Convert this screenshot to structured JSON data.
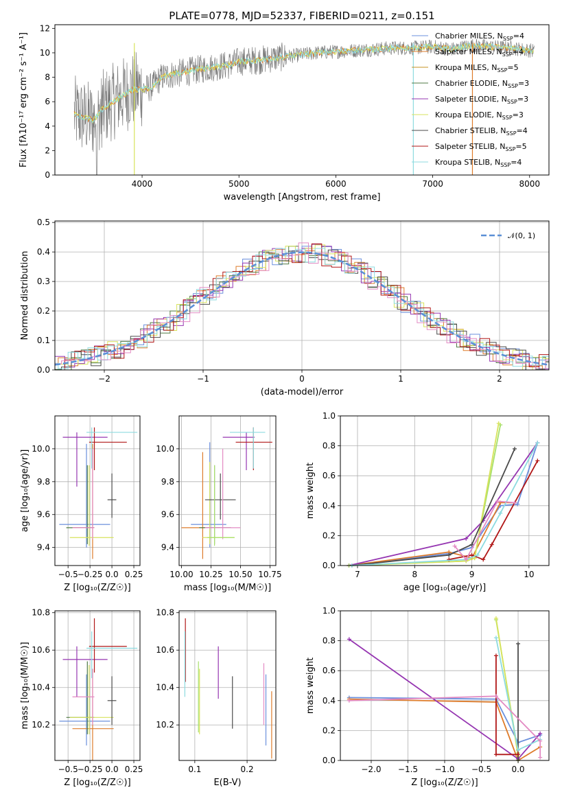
{
  "figure_title": "PLATE=0778, MJD=52337, FIBERID=0211, z=0.151",
  "colors": {
    "blue": "#6a8fdc",
    "orange": "#de7b2a",
    "darkgreen": "#4f7a43",
    "purple": "#9535b1",
    "yellow": "#d7e35c",
    "darkgray": "#4a4a4a",
    "red": "#b01616",
    "cyan": "#8cdbdf",
    "pink": "#e38ac3",
    "lightgreen": "#a7e06b",
    "gray": "#7a7a7a",
    "salmon": "#f07b5b"
  },
  "chart_data": [
    {
      "id": "spectrum",
      "type": "line",
      "title": "",
      "xlabel": "wavelength [Angstrom, rest frame]",
      "ylabel": "Flux [fλ10⁻¹⁷ erg cm⁻² s⁻¹ A⁻¹]",
      "xlim": [
        3100,
        8200
      ],
      "ylim": [
        0,
        12.3
      ],
      "xticks": [
        4000,
        5000,
        6000,
        7000,
        8000
      ],
      "yticks": [
        0,
        2,
        4,
        6,
        8,
        10,
        12
      ],
      "grid": false,
      "legend_position": "top-right",
      "data_curve": {
        "x": [
          3300,
          3400,
          3500,
          3550,
          3600,
          3700,
          3800,
          3900,
          4000,
          4100,
          4200,
          4300,
          4500,
          4700,
          4900,
          5000,
          5200,
          5400,
          5600,
          5800,
          6000,
          6200,
          6400,
          6600,
          6800,
          7000,
          7200,
          7400,
          7600,
          7800,
          8000
        ],
        "y": [
          5.0,
          4.7,
          4.5,
          5.0,
          5.5,
          6.0,
          6.5,
          7.0,
          7.0,
          7.2,
          8.0,
          8.2,
          8.5,
          8.8,
          9.0,
          9.3,
          9.4,
          9.6,
          9.8,
          10.0,
          10.1,
          10.2,
          10.3,
          10.4,
          10.4,
          10.5,
          10.3,
          10.6,
          10.5,
          10.4,
          10.2
        ]
      },
      "series": [
        {
          "name": "Chabrier MILES, N_SSP=4",
          "color": "#6a8fdc"
        },
        {
          "name": "Salpeter MILES, N_SSP=4",
          "color": "#de7b2a"
        },
        {
          "name": "Kroupa MILES, N_SSP=5",
          "color": "#c69020"
        },
        {
          "name": "Chabrier ELODIE, N_SSP=3",
          "color": "#4f7a43"
        },
        {
          "name": "Salpeter ELODIE, N_SSP=3",
          "color": "#9535b1"
        },
        {
          "name": "Kroupa ELODIE, N_SSP=3",
          "color": "#d7e35c"
        },
        {
          "name": "Chabrier STELIB, N_SSP=4",
          "color": "#4a4a4a"
        },
        {
          "name": "Salpeter STELIB, N_SSP=5",
          "color": "#b01616"
        },
        {
          "name": "Kroupa STELIB, N_SSP=4",
          "color": "#8cdbdf"
        }
      ]
    },
    {
      "id": "residuals",
      "type": "histogram",
      "xlabel": "(data-model)/error",
      "ylabel": "Normed distribution",
      "xlim": [
        -2.5,
        2.5
      ],
      "ylim": [
        0,
        0.505
      ],
      "xticks": [
        -2,
        -1,
        0,
        1,
        2
      ],
      "xtick_labels": [
        "−2",
        "−1",
        "0",
        "1",
        "2"
      ],
      "yticks": [
        0.0,
        0.1,
        0.2,
        0.3,
        0.4,
        0.5
      ],
      "ytick_labels": [
        "0.0",
        "0.1",
        "0.2",
        "0.3",
        "0.4",
        "0.5"
      ],
      "grid": true,
      "legend_position": "top-right",
      "reference_curve": {
        "name": "𝒩(0, 1)",
        "mean": 0,
        "sigma": 1
      },
      "series_colors": [
        "#6a8fdc",
        "#de7b2a",
        "#4f7a43",
        "#9535b1",
        "#d7e35c",
        "#4a4a4a",
        "#b01616",
        "#8cdbdf",
        "#e38ac3"
      ]
    },
    {
      "id": "age_vs_Z",
      "type": "errorbar",
      "xlabel": "Z [log₁₀(Z/Z☉)]",
      "ylabel": "age  [log₁₀(age/yr)]",
      "xlim": [
        -0.65,
        0.32
      ],
      "ylim": [
        9.29,
        10.2
      ],
      "xticks": [
        -0.5,
        -0.25,
        0.0,
        0.25
      ],
      "xtick_labels": [
        "−0.5",
        "−0.25",
        "0.0",
        "0.25"
      ],
      "yticks": [
        9.4,
        9.6,
        9.8,
        10.0
      ],
      "ytick_labels": [
        "9.4",
        "9.6",
        "9.8",
        "10.0"
      ],
      "grid": true,
      "points": [
        {
          "x": -0.29,
          "y": 9.54,
          "xlo": -0.6,
          "xhi": -0.02,
          "ylo": 9.4,
          "yhi": 10.03,
          "color": "#6a8fdc"
        },
        {
          "x": -0.22,
          "y": 9.52,
          "xlo": -0.45,
          "xhi": -0.2,
          "ylo": 9.33,
          "yhi": 10.03,
          "color": "#de7b2a"
        },
        {
          "x": -0.28,
          "y": 9.52,
          "xlo": -0.52,
          "xhi": -0.2,
          "ylo": 9.42,
          "yhi": 9.9,
          "color": "#4f7a43"
        },
        {
          "x": -0.4,
          "y": 10.07,
          "xlo": -0.56,
          "xhi": -0.05,
          "ylo": 9.77,
          "yhi": 10.1,
          "color": "#9535b1"
        },
        {
          "x": -0.26,
          "y": 9.46,
          "xlo": -0.48,
          "xhi": 0.02,
          "ylo": 9.41,
          "yhi": 9.9,
          "color": "#d7e35c"
        },
        {
          "x": 0.0,
          "y": 9.69,
          "xlo": -0.05,
          "xhi": 0.05,
          "ylo": 9.58,
          "yhi": 9.85,
          "color": "#4a4a4a"
        },
        {
          "x": -0.2,
          "y": 10.04,
          "xlo": -0.26,
          "xhi": 0.17,
          "ylo": 9.87,
          "yhi": 10.13,
          "color": "#b01616"
        },
        {
          "x": -0.23,
          "y": 10.1,
          "xlo": -0.29,
          "xhi": 0.29,
          "ylo": 9.88,
          "yhi": 10.13,
          "color": "#8cdbdf"
        },
        {
          "x": -0.22,
          "y": 9.52,
          "xlo": -0.45,
          "xhi": -0.2,
          "ylo": 9.45,
          "yhi": 10.0,
          "color": "#e38ac3"
        }
      ]
    },
    {
      "id": "age_vs_mass",
      "type": "errorbar",
      "xlabel": "mass [log₁₀(M/M☉)]",
      "ylabel": "",
      "xlim": [
        9.98,
        10.8
      ],
      "ylim": [
        9.29,
        10.2
      ],
      "xticks": [
        10.0,
        10.25,
        10.5,
        10.75
      ],
      "xtick_labels": [
        "10.00",
        "10.25",
        "10.50",
        "10.75"
      ],
      "yticks": [
        9.4,
        9.6,
        9.8,
        10.0
      ],
      "ytick_labels": [
        "9.4",
        "9.6",
        "9.8",
        "10.0"
      ],
      "grid": true,
      "points": [
        {
          "x": 10.24,
          "y": 9.54,
          "xlo": 10.08,
          "xhi": 10.38,
          "ylo": 9.4,
          "yhi": 10.04,
          "color": "#6a8fdc"
        },
        {
          "x": 10.18,
          "y": 9.52,
          "xlo": 10.0,
          "xhi": 10.33,
          "ylo": 9.33,
          "yhi": 9.98,
          "color": "#de7b2a"
        },
        {
          "x": 10.28,
          "y": 9.52,
          "xlo": 10.15,
          "xhi": 10.42,
          "ylo": 9.42,
          "yhi": 9.9,
          "color": "#4f7a43"
        },
        {
          "x": 10.55,
          "y": 10.07,
          "xlo": 10.35,
          "xhi": 10.62,
          "ylo": 9.87,
          "yhi": 10.1,
          "color": "#9535b1"
        },
        {
          "x": 10.24,
          "y": 9.46,
          "xlo": 10.18,
          "xhi": 10.45,
          "ylo": 9.42,
          "yhi": 9.92,
          "color": "#d7e35c"
        },
        {
          "x": 10.33,
          "y": 9.69,
          "xlo": 10.2,
          "xhi": 10.46,
          "ylo": 9.57,
          "yhi": 9.85,
          "color": "#4a4a4a"
        },
        {
          "x": 10.61,
          "y": 10.04,
          "xlo": 10.46,
          "xhi": 10.77,
          "ylo": 9.87,
          "yhi": 10.13,
          "color": "#b01616"
        },
        {
          "x": 10.61,
          "y": 10.1,
          "xlo": 10.41,
          "xhi": 10.71,
          "ylo": 9.88,
          "yhi": 10.13,
          "color": "#8cdbdf"
        },
        {
          "x": 10.35,
          "y": 9.52,
          "xlo": 10.2,
          "xhi": 10.5,
          "ylo": 9.45,
          "yhi": 10.0,
          "color": "#e38ac3"
        },
        {
          "x": 10.28,
          "y": 9.46,
          "xlo": 10.22,
          "xhi": 10.45,
          "ylo": 9.41,
          "yhi": 9.9,
          "color": "#a7e06b"
        }
      ]
    },
    {
      "id": "massweight_vs_age",
      "type": "line",
      "xlabel": "age  [log₁₀(age/yr)]",
      "ylabel": "mass weight",
      "xlim": [
        6.7,
        10.35
      ],
      "ylim": [
        0,
        1.0
      ],
      "xticks": [
        7,
        8,
        9,
        10
      ],
      "yticks": [
        0.0,
        0.2,
        0.4,
        0.6,
        0.8,
        1.0
      ],
      "ytick_labels": [
        "0.0",
        "0.2",
        "0.4",
        "0.6",
        "0.8",
        "1.0"
      ],
      "grid": true,
      "series": [
        {
          "color": "#6a8fdc",
          "x": [
            6.9,
            8.6,
            9.0,
            9.5,
            9.8,
            10.15
          ],
          "y": [
            0.0,
            0.08,
            0.12,
            0.4,
            0.41,
            0.82
          ]
        },
        {
          "color": "#de7b2a",
          "x": [
            6.85,
            8.6,
            9.0,
            9.5,
            9.75
          ],
          "y": [
            0.0,
            0.09,
            0.05,
            0.42,
            0.42
          ]
        },
        {
          "color": "#9535b1",
          "x": [
            6.85,
            8.9,
            9.2,
            10.15
          ],
          "y": [
            0.0,
            0.18,
            0.3,
            0.82
          ]
        },
        {
          "color": "#a7e06b",
          "x": [
            6.85,
            8.9,
            9.05,
            9.5
          ],
          "y": [
            0.0,
            0.03,
            0.05,
            0.94
          ]
        },
        {
          "color": "#d7e35c",
          "x": [
            6.9,
            8.9,
            9.05,
            9.47
          ],
          "y": [
            0.0,
            0.03,
            0.05,
            0.95
          ]
        },
        {
          "color": "#4a4a4a",
          "x": [
            6.9,
            8.6,
            9.0,
            9.75
          ],
          "y": [
            0.0,
            0.07,
            0.14,
            0.78
          ]
        },
        {
          "color": "#b01616",
          "x": [
            8.6,
            9.0,
            9.2,
            9.35,
            10.15
          ],
          "y": [
            0.04,
            0.07,
            0.04,
            0.14,
            0.7
          ]
        },
        {
          "color": "#8cdbdf",
          "x": [
            6.9,
            8.9,
            9.1,
            9.5,
            10.15
          ],
          "y": [
            0.0,
            0.04,
            0.07,
            0.35,
            0.82
          ]
        },
        {
          "color": "#e38ac3",
          "x": [
            8.7,
            8.9,
            9.45,
            9.75
          ],
          "y": [
            0.13,
            0.04,
            0.43,
            0.42
          ]
        }
      ]
    },
    {
      "id": "mass_vs_Z",
      "type": "errorbar",
      "xlabel": "Z [log₁₀(Z/Z☉)]",
      "ylabel": "mass [log₁₀(M/M☉)]",
      "xlim": [
        -0.65,
        0.32
      ],
      "ylim": [
        10.01,
        10.81
      ],
      "xticks": [
        -0.5,
        -0.25,
        0.0,
        0.25
      ],
      "xtick_labels": [
        "−0.5",
        "−0.25",
        "0.0",
        "0.25"
      ],
      "yticks": [
        10.2,
        10.4,
        10.6,
        10.8
      ],
      "ytick_labels": [
        "10.2",
        "10.4",
        "10.6",
        "10.8"
      ],
      "grid": true,
      "points": [
        {
          "x": -0.29,
          "y": 10.22,
          "xlo": -0.6,
          "xhi": -0.02,
          "ylo": 10.09,
          "yhi": 10.47,
          "color": "#6a8fdc"
        },
        {
          "x": -0.22,
          "y": 10.18,
          "xlo": -0.45,
          "xhi": 0.02,
          "ylo": 10.0,
          "yhi": 10.5,
          "color": "#de7b2a"
        },
        {
          "x": -0.28,
          "y": 10.24,
          "xlo": -0.52,
          "xhi": -0.2,
          "ylo": 10.15,
          "yhi": 10.54,
          "color": "#4f7a43"
        },
        {
          "x": -0.4,
          "y": 10.55,
          "xlo": -0.56,
          "xhi": -0.05,
          "ylo": 10.35,
          "yhi": 10.62,
          "color": "#9535b1"
        },
        {
          "x": -0.26,
          "y": 10.24,
          "xlo": -0.48,
          "xhi": 0.02,
          "ylo": 10.15,
          "yhi": 10.52,
          "color": "#d7e35c"
        },
        {
          "x": 0.0,
          "y": 10.33,
          "xlo": -0.05,
          "xhi": 0.05,
          "ylo": 10.2,
          "yhi": 10.46,
          "color": "#4a4a4a"
        },
        {
          "x": -0.2,
          "y": 10.62,
          "xlo": -0.26,
          "xhi": 0.17,
          "ylo": 10.48,
          "yhi": 10.77,
          "color": "#b01616"
        },
        {
          "x": -0.23,
          "y": 10.61,
          "xlo": -0.29,
          "xhi": 0.29,
          "ylo": 10.45,
          "yhi": 10.7,
          "color": "#8cdbdf"
        },
        {
          "x": -0.22,
          "y": 10.35,
          "xlo": -0.45,
          "xhi": -0.2,
          "ylo": 10.2,
          "yhi": 10.5,
          "color": "#e38ac3"
        }
      ]
    },
    {
      "id": "mass_vs_ebv",
      "type": "errorbar",
      "xlabel": "E(B-V)",
      "ylabel": "",
      "xlim": [
        0.07,
        0.255
      ],
      "ylim": [
        10.01,
        10.81
      ],
      "xticks": [
        0.1,
        0.2
      ],
      "xtick_labels": [
        "0.1",
        "0.2"
      ],
      "yticks": [
        10.2,
        10.4,
        10.6,
        10.8
      ],
      "ytick_labels": [
        "10.2",
        "10.4",
        "10.6",
        "10.8"
      ],
      "grid": true,
      "points": [
        {
          "x": 0.082,
          "y": 10.6,
          "xlo": 0.082,
          "xhi": 0.082,
          "ylo": 10.43,
          "yhi": 10.77,
          "color": "#b01616"
        },
        {
          "x": 0.081,
          "y": 10.55,
          "xlo": 0.081,
          "xhi": 0.081,
          "ylo": 10.35,
          "yhi": 10.7,
          "color": "#8cdbdf"
        },
        {
          "x": 0.107,
          "y": 10.35,
          "xlo": 0.107,
          "xhi": 0.107,
          "ylo": 10.16,
          "yhi": 10.54,
          "color": "#a7e06b"
        },
        {
          "x": 0.109,
          "y": 10.3,
          "xlo": 0.109,
          "xhi": 0.109,
          "ylo": 10.15,
          "yhi": 10.5,
          "color": "#d7e35c"
        },
        {
          "x": 0.145,
          "y": 10.48,
          "xlo": 0.145,
          "xhi": 0.145,
          "ylo": 10.34,
          "yhi": 10.62,
          "color": "#9535b1"
        },
        {
          "x": 0.172,
          "y": 10.33,
          "xlo": 0.172,
          "xhi": 0.172,
          "ylo": 10.18,
          "yhi": 10.46,
          "color": "#4a4a4a"
        },
        {
          "x": 0.232,
          "y": 10.35,
          "xlo": 0.232,
          "xhi": 0.232,
          "ylo": 10.2,
          "yhi": 10.53,
          "color": "#e38ac3"
        },
        {
          "x": 0.236,
          "y": 10.25,
          "xlo": 0.236,
          "xhi": 0.236,
          "ylo": 10.09,
          "yhi": 10.47,
          "color": "#6a8fdc"
        },
        {
          "x": 0.247,
          "y": 10.2,
          "xlo": 0.247,
          "xhi": 0.247,
          "ylo": 10.02,
          "yhi": 10.38,
          "color": "#de7b2a"
        }
      ]
    },
    {
      "id": "massweight_vs_Z",
      "type": "line",
      "xlabel": "Z [log₁₀(Z/Z☉)]",
      "ylabel": "mass weight",
      "xlim": [
        -2.42,
        0.42
      ],
      "ylim": [
        0,
        1.0
      ],
      "xticks": [
        -2.0,
        -1.5,
        -1.0,
        -0.5,
        0.0
      ],
      "xtick_labels": [
        "−2.0",
        "−1.5",
        "−1.0",
        "−0.5",
        "0.0"
      ],
      "yticks": [
        0.0,
        0.2,
        0.4,
        0.6,
        0.8,
        1.0
      ],
      "ytick_labels": [
        "0.0",
        "0.2",
        "0.4",
        "0.6",
        "0.8",
        "1.0"
      ],
      "grid": true,
      "series": [
        {
          "color": "#6a8fdc",
          "x": [
            -2.3,
            -0.3,
            0.0,
            0.3
          ],
          "y": [
            0.42,
            0.41,
            0.12,
            0.17
          ]
        },
        {
          "color": "#de7b2a",
          "x": [
            -2.3,
            -0.3,
            0.0,
            0.3
          ],
          "y": [
            0.41,
            0.39,
            0.0,
            0.09
          ]
        },
        {
          "color": "#9535b1",
          "x": [
            -2.3,
            0.0,
            0.3
          ],
          "y": [
            0.81,
            0.01,
            0.18
          ]
        },
        {
          "color": "#a7e06b",
          "x": [
            -0.3,
            0.0,
            0.0
          ],
          "y": [
            0.94,
            0.05,
            0.0
          ]
        },
        {
          "color": "#d7e35c",
          "x": [
            -0.3,
            0.0
          ],
          "y": [
            0.95,
            0.03
          ]
        },
        {
          "color": "#4a4a4a",
          "x": [
            0.0,
            0.0,
            0.0
          ],
          "y": [
            0.78,
            0.07,
            0.0
          ]
        },
        {
          "color": "#b01616",
          "x": [
            -0.3,
            -0.3,
            0.0,
            0.0
          ],
          "y": [
            0.7,
            0.04,
            0.04,
            0.07
          ]
        },
        {
          "color": "#8cdbdf",
          "x": [
            -0.3,
            0.0,
            0.3
          ],
          "y": [
            0.82,
            0.07,
            0.14
          ]
        },
        {
          "color": "#e38ac3",
          "x": [
            -2.3,
            -0.3,
            0.3,
            0.3
          ],
          "y": [
            0.4,
            0.43,
            0.13,
            0.02
          ]
        }
      ]
    }
  ]
}
